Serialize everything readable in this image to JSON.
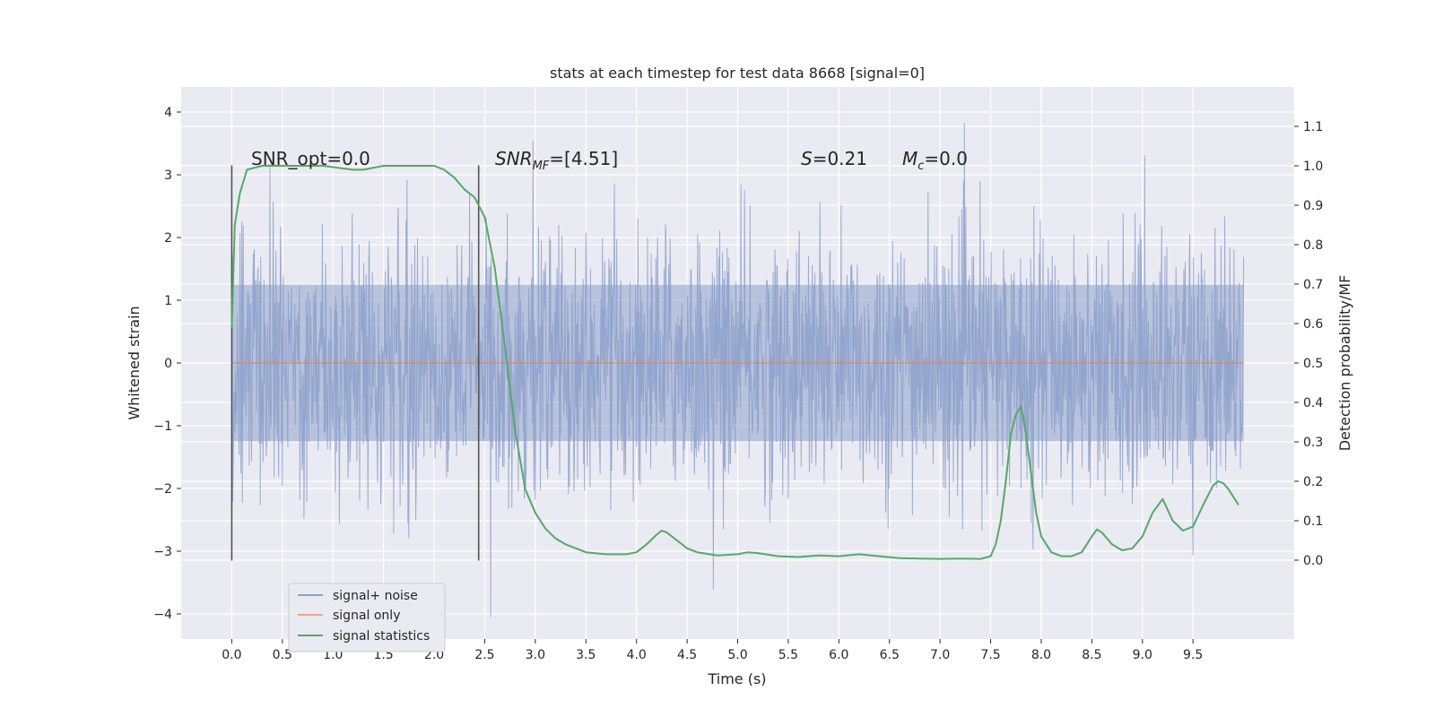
{
  "chart_data": {
    "type": "line",
    "title": "stats at each timestep for test data 8668 [signal=0]",
    "xlabel": "Time (s)",
    "ylabel": "Whitened strain",
    "ylabel_right": "Detection probability/MF",
    "xlim": [
      -0.5,
      10.5
    ],
    "ylim": [
      -4.4,
      4.4
    ],
    "ylim_right": [
      -0.2,
      1.2
    ],
    "x_ticks": [
      0.0,
      0.5,
      1.0,
      1.5,
      2.0,
      2.5,
      3.0,
      3.5,
      4.0,
      4.5,
      5.0,
      5.5,
      6.0,
      6.5,
      7.0,
      7.5,
      8.0,
      8.5,
      9.0,
      9.5
    ],
    "x_tick_labels": [
      "0.0",
      "0.5",
      "1.0",
      "1.5",
      "2.0",
      "2.5",
      "3.0",
      "3.5",
      "4.0",
      "4.5",
      "5.0",
      "5.5",
      "6.0",
      "6.5",
      "7.0",
      "7.5",
      "8.0",
      "8.5",
      "9.0",
      "9.5"
    ],
    "y_ticks": [
      -4,
      -3,
      -2,
      -1,
      0,
      1,
      2,
      3,
      4
    ],
    "y_tick_labels": [
      "−4",
      "−3",
      "−2",
      "−1",
      "0",
      "1",
      "2",
      "3",
      "4"
    ],
    "y_right_ticks": [
      0.0,
      0.1,
      0.2,
      0.3,
      0.4,
      0.5,
      0.6,
      0.7,
      0.8,
      0.9,
      1.0,
      1.1
    ],
    "y_right_tick_labels": [
      "0.0",
      "0.1",
      "0.2",
      "0.3",
      "0.4",
      "0.5",
      "0.6",
      "0.7",
      "0.8",
      "0.9",
      "1.0",
      "1.1"
    ],
    "grid": true,
    "legend_position": "lower-left",
    "legend": [
      {
        "label": "signal+ noise",
        "color": "#8da0cb"
      },
      {
        "label": "signal only",
        "color": "#e9a98b"
      },
      {
        "label": "signal statistics",
        "color": "#55a868"
      }
    ],
    "annotations": {
      "snr_opt": "SNR_opt=0.0",
      "snr_mf_base": "SNR",
      "snr_mf_sub": "MF",
      "snr_mf_value": "=[4.51]",
      "s_italic": "S",
      "s_value": "=0.21",
      "mc_italic": "M",
      "mc_sub": "c",
      "mc_value": "=0.0"
    },
    "vertical_lines_x": [
      0.0,
      2.44
    ],
    "vertical_lines_yrange": [
      -3.15,
      3.15
    ],
    "noise_series": {
      "name": "signal+ noise",
      "x_range": [
        0.0,
        10.0
      ],
      "color": "#8da0cb",
      "core_band": [
        -1.25,
        1.25
      ],
      "typical_extent": [
        -2.4,
        2.4
      ],
      "peak_max": 4.02,
      "peak_min": -4.05
    },
    "signal_series": {
      "name": "signal only",
      "color": "#dd8452",
      "x": [
        0.0,
        10.0
      ],
      "y": [
        0.0,
        0.0
      ]
    },
    "stat_series": {
      "name": "signal statistics",
      "color": "#55a868",
      "x": [
        0.0,
        0.03,
        0.08,
        0.15,
        0.3,
        0.6,
        0.9,
        1.2,
        1.3,
        1.5,
        1.8,
        2.0,
        2.1,
        2.2,
        2.3,
        2.4,
        2.5,
        2.6,
        2.7,
        2.8,
        2.9,
        3.0,
        3.1,
        3.2,
        3.3,
        3.5,
        3.7,
        3.9,
        4.0,
        4.1,
        4.2,
        4.25,
        4.3,
        4.4,
        4.5,
        4.6,
        4.8,
        5.0,
        5.1,
        5.2,
        5.4,
        5.6,
        5.8,
        6.0,
        6.2,
        6.4,
        6.6,
        6.8,
        7.0,
        7.2,
        7.4,
        7.5,
        7.55,
        7.6,
        7.65,
        7.7,
        7.75,
        7.8,
        7.85,
        7.9,
        7.95,
        8.0,
        8.1,
        8.2,
        8.3,
        8.4,
        8.5,
        8.55,
        8.6,
        8.7,
        8.8,
        8.9,
        9.0,
        9.1,
        9.2,
        9.3,
        9.4,
        9.5,
        9.6,
        9.7,
        9.75,
        9.8,
        9.85,
        9.9,
        9.95
      ],
      "y": [
        0.59,
        0.85,
        0.93,
        0.99,
        1.0,
        1.0,
        1.0,
        0.99,
        0.99,
        1.0,
        1.0,
        1.0,
        0.99,
        0.97,
        0.94,
        0.92,
        0.87,
        0.74,
        0.54,
        0.33,
        0.18,
        0.12,
        0.08,
        0.055,
        0.04,
        0.02,
        0.015,
        0.015,
        0.02,
        0.04,
        0.065,
        0.075,
        0.07,
        0.05,
        0.03,
        0.02,
        0.012,
        0.015,
        0.02,
        0.018,
        0.01,
        0.008,
        0.012,
        0.01,
        0.015,
        0.01,
        0.005,
        0.004,
        0.003,
        0.004,
        0.003,
        0.01,
        0.04,
        0.1,
        0.2,
        0.32,
        0.37,
        0.39,
        0.32,
        0.22,
        0.12,
        0.06,
        0.02,
        0.01,
        0.01,
        0.02,
        0.06,
        0.078,
        0.07,
        0.04,
        0.025,
        0.03,
        0.06,
        0.12,
        0.155,
        0.1,
        0.075,
        0.085,
        0.14,
        0.19,
        0.2,
        0.195,
        0.18,
        0.16,
        0.14
      ]
    }
  }
}
